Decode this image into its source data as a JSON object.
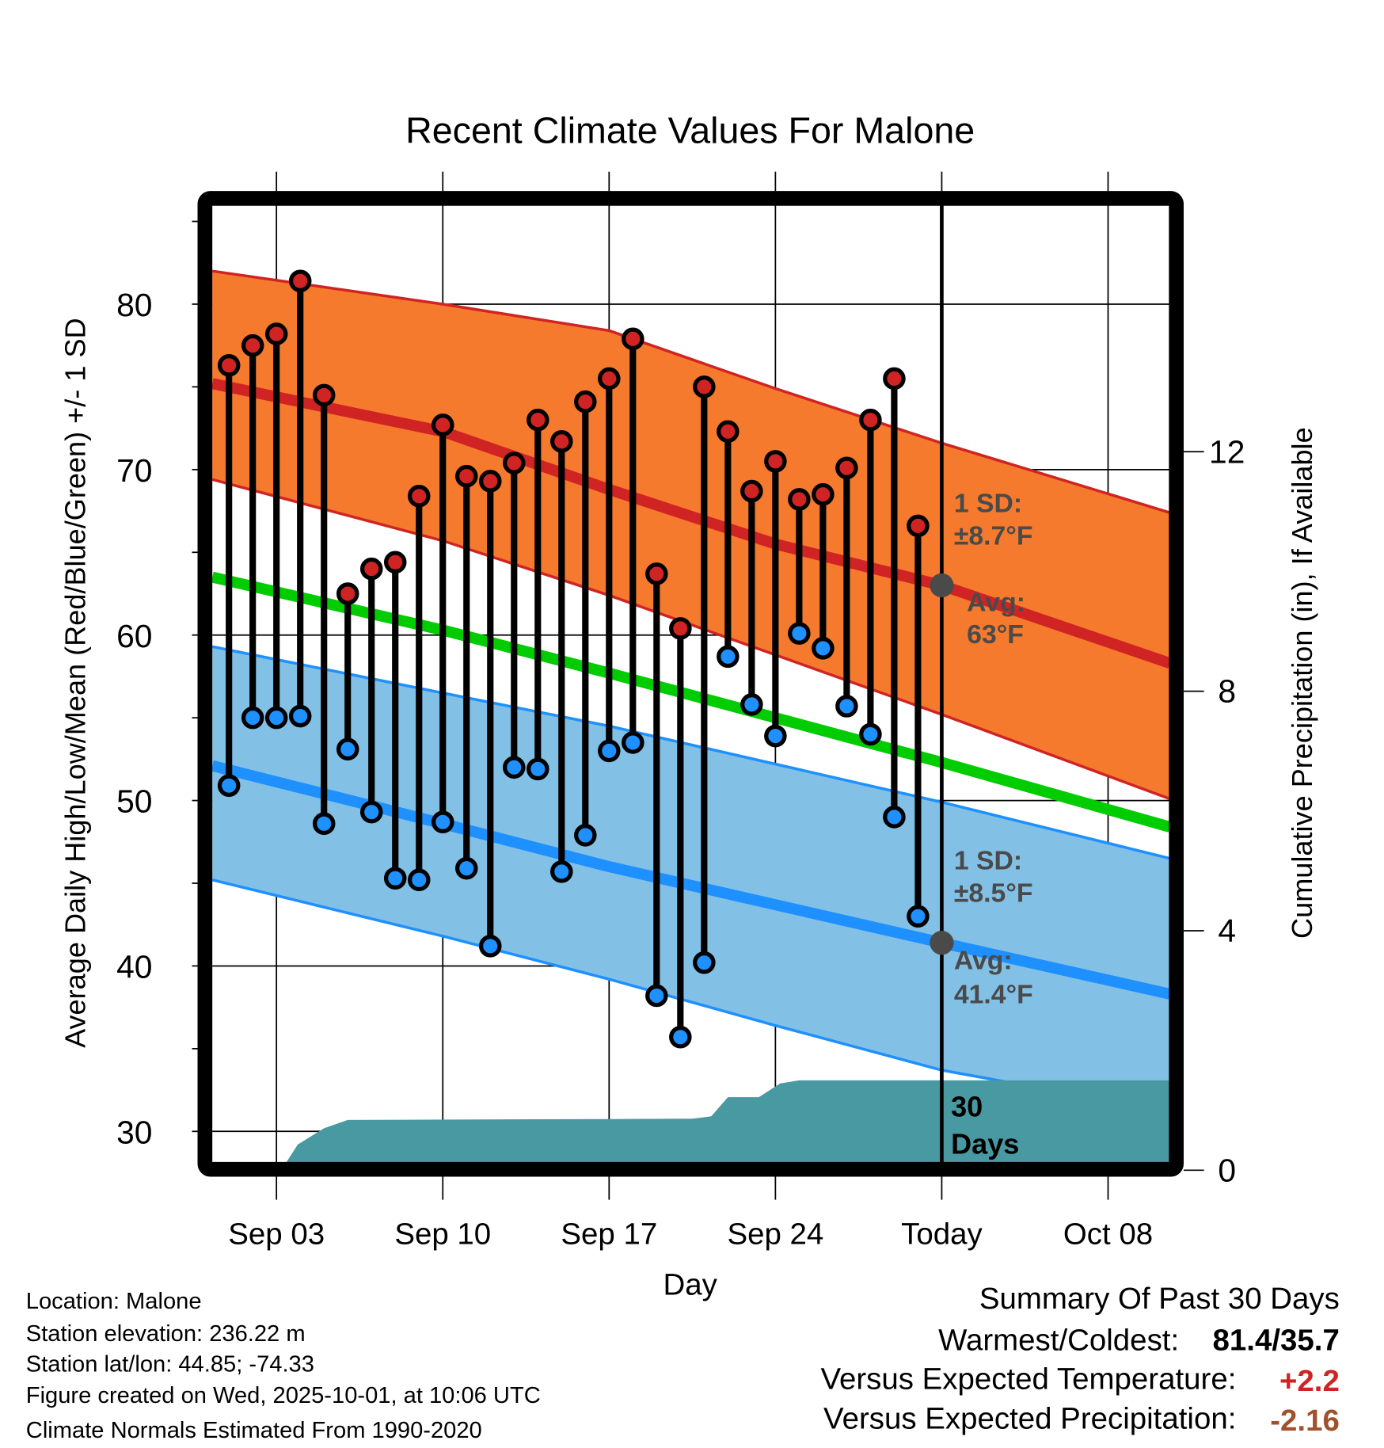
{
  "chart_data": {
    "type": "line",
    "title": "Recent Climate Values For Malone",
    "xlabel": "Day",
    "ylabel": "Average Daily High/Low/Mean (Red/Blue/Green) +/- 1 SD",
    "y2label": "Cumulative Precipitation (in), If Available",
    "ylim": [
      28.1,
      86
    ],
    "y2lim": [
      0,
      16
    ],
    "xlim_days_from_sep1": [
      -0.7,
      39.6
    ],
    "grid": true,
    "yticks": [
      "30",
      "40",
      "50",
      "60",
      "70",
      "80"
    ],
    "yticks_values": [
      30,
      40,
      50,
      60,
      70,
      80
    ],
    "y2ticks": [
      "0",
      "4",
      "8",
      "12"
    ],
    "y2ticks_values": [
      0,
      4,
      8,
      12
    ],
    "xticks": [
      "Sep 03",
      "Sep 10",
      "Sep 17",
      "Sep 24",
      "Today",
      "Oct 08"
    ],
    "xticks_days": [
      2,
      9,
      16,
      23,
      30,
      37
    ],
    "today_day": 30,
    "today_label_1": "30",
    "today_label_2": "Days",
    "highs": [
      76.3,
      77.5,
      78.2,
      81.4,
      74.5,
      62.5,
      64.0,
      64.4,
      68.4,
      72.7,
      69.6,
      69.3,
      70.4,
      73.0,
      71.7,
      74.1,
      75.5,
      77.9,
      63.7,
      60.4,
      75.0,
      72.3,
      68.7,
      70.5,
      68.2,
      68.5,
      70.1,
      73.0,
      75.5,
      66.6
    ],
    "lows": [
      50.9,
      55.0,
      55.0,
      55.1,
      48.6,
      53.1,
      49.3,
      45.3,
      45.2,
      48.7,
      45.9,
      41.2,
      52.0,
      51.9,
      45.7,
      47.9,
      53.0,
      53.5,
      38.2,
      35.7,
      40.2,
      58.7,
      55.8,
      53.9,
      60.1,
      59.2,
      55.7,
      54.0,
      49.0,
      43.0
    ],
    "normals_days": [
      -0.7,
      9,
      16,
      23,
      30,
      39.6
    ],
    "normal_high": [
      75.2,
      72.3,
      68.8,
      65.5,
      63.0,
      58.3
    ],
    "normal_high_upper": [
      82.0,
      80.0,
      78.4,
      74.9,
      71.6,
      67.4
    ],
    "normal_high_lower": [
      69.4,
      65.7,
      62.4,
      58.8,
      55.2,
      50.1
    ],
    "normal_mean": [
      63.5,
      60.3,
      57.7,
      55.0,
      52.3,
      48.4
    ],
    "normal_low": [
      52.1,
      48.6,
      46.0,
      43.7,
      41.4,
      38.3
    ],
    "normal_low_upper": [
      59.3,
      56.5,
      54.5,
      52.2,
      49.9,
      46.5
    ],
    "normal_low_lower": [
      45.2,
      41.8,
      39.2,
      36.4,
      33.7,
      31.2
    ],
    "precip_days": [
      2.4,
      2.9,
      4.0,
      5.0,
      19.5,
      20.3,
      21.0,
      22.3,
      23.2,
      24.0,
      39.6
    ],
    "precip_cum": [
      0,
      0.43,
      0.7,
      0.84,
      0.86,
      0.9,
      1.22,
      1.22,
      1.45,
      1.5,
      1.5
    ],
    "annotations": {
      "high_sd_1": "1 SD:",
      "high_sd_2": "±8.7°F",
      "high_avg_1": "Avg:",
      "high_avg_2": "63°F",
      "low_sd_1": "1 SD:",
      "low_sd_2": "±8.5°F",
      "low_avg_1": "Avg:",
      "low_avg_2": "41.4°F",
      "today_high_avg": 63.0,
      "today_low_avg": 41.4
    },
    "colors": {
      "high": "#d02424",
      "high_band": "#f57a2d",
      "mean": "#00cc00",
      "low": "#1e90ff",
      "low_band": "#82c0e6",
      "precip": "#4899a2",
      "label": "#4a4a4a"
    }
  },
  "footer": {
    "location": "Location: Malone",
    "elevation": "Station elevation: 236.22 m",
    "latlon": "Station lat/lon: 44.85; -74.33",
    "created": "Figure created on Wed, 2025-10-01, at 10:06 UTC",
    "normals": "Climate Normals Estimated From 1990-2020"
  },
  "summary": {
    "title": "Summary Of Past 30 Days",
    "warmest_label": "Warmest/Coldest:",
    "warmest_value": "81.4/35.7",
    "temp_label": "Versus Expected Temperature:",
    "temp_value": "+2.2",
    "temp_color": "#d02424",
    "precip_label": "Versus Expected Precipitation:",
    "precip_value": "-2.16",
    "precip_color": "#a0522d"
  }
}
